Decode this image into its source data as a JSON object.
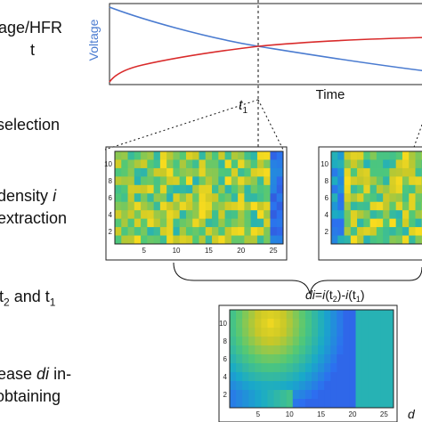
{
  "left_text": {
    "line1": "age/HFR",
    "line2": "t",
    "line3": "selection",
    "line4": "density",
    "line4_italic": "i",
    "line5": "extraction",
    "line6_a": "t",
    "line6_sub2": "2",
    "line6_b": " and t",
    "line6_sub1": "1",
    "line7_a": "ease ",
    "line7_italic": "di",
    "line7_b": " in-",
    "line8": "obtaining"
  },
  "top_plot": {
    "ylabel": "Voltage",
    "xlabel": "Time",
    "marker_label": "t",
    "marker_sub": "1",
    "colors": {
      "voltage": "#4a7bd0",
      "hfr": "#d92b2b"
    }
  },
  "formula": {
    "p1": "di",
    "p2": "=",
    "p3": "i",
    "p4": "(t",
    "p5": "2",
    "p6": ")-",
    "p7": "i",
    "p8": "(t",
    "p9": "1",
    "p10": ")"
  },
  "corner_text": "d",
  "heatmap_axes": {
    "yticks": [
      "10",
      "8",
      "6",
      "4",
      "2"
    ],
    "xticks_small": [
      "5",
      "10",
      "15",
      "20",
      "25"
    ],
    "xticks_large": [
      "5",
      "10",
      "15",
      "20",
      "25"
    ]
  }
}
